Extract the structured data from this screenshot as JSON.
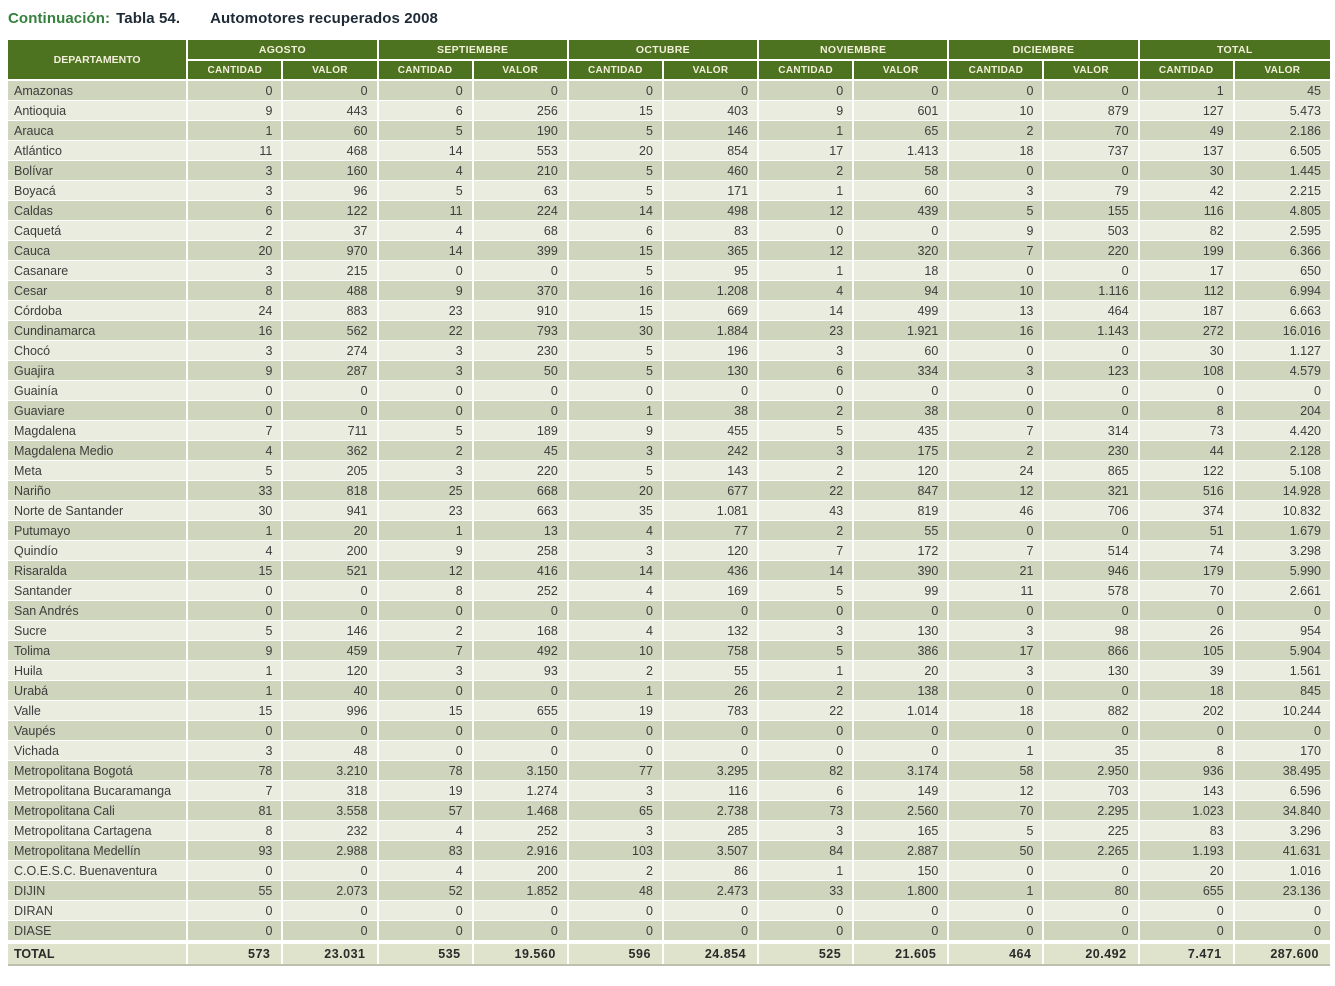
{
  "title": {
    "continuation": "Continuación:",
    "table_number": "Tabla 54.",
    "table_name": "Automotores recuperados 2008"
  },
  "colors": {
    "header_bg": "#4d7220",
    "header_text": "#f3efda",
    "row_dark": "#cfd4bc",
    "row_light": "#e9ecdf",
    "total_row_bg": "#dfe3cc",
    "title_green": "#35813d",
    "title_dark": "#1e2a36"
  },
  "table": {
    "department_header": "DEPARTAMENTO",
    "month_groups": [
      "AGOSTO",
      "SEPTIEMBRE",
      "OCTUBRE",
      "NOVIEMBRE",
      "DICIEMBRE",
      "TOTAL"
    ],
    "sub_headers": [
      "CANTIDAD",
      "VALOR"
    ],
    "rows": [
      {
        "name": "Amazonas",
        "values": [
          "0",
          "0",
          "0",
          "0",
          "0",
          "0",
          "0",
          "0",
          "0",
          "0",
          "1",
          "45"
        ]
      },
      {
        "name": "Antioquia",
        "values": [
          "9",
          "443",
          "6",
          "256",
          "15",
          "403",
          "9",
          "601",
          "10",
          "879",
          "127",
          "5.473"
        ]
      },
      {
        "name": "Arauca",
        "values": [
          "1",
          "60",
          "5",
          "190",
          "5",
          "146",
          "1",
          "65",
          "2",
          "70",
          "49",
          "2.186"
        ]
      },
      {
        "name": "Atlántico",
        "values": [
          "11",
          "468",
          "14",
          "553",
          "20",
          "854",
          "17",
          "1.413",
          "18",
          "737",
          "137",
          "6.505"
        ]
      },
      {
        "name": "Bolívar",
        "values": [
          "3",
          "160",
          "4",
          "210",
          "5",
          "460",
          "2",
          "58",
          "0",
          "0",
          "30",
          "1.445"
        ]
      },
      {
        "name": "Boyacá",
        "values": [
          "3",
          "96",
          "5",
          "63",
          "5",
          "171",
          "1",
          "60",
          "3",
          "79",
          "42",
          "2.215"
        ]
      },
      {
        "name": "Caldas",
        "values": [
          "6",
          "122",
          "11",
          "224",
          "14",
          "498",
          "12",
          "439",
          "5",
          "155",
          "116",
          "4.805"
        ]
      },
      {
        "name": "Caquetá",
        "values": [
          "2",
          "37",
          "4",
          "68",
          "6",
          "83",
          "0",
          "0",
          "9",
          "503",
          "82",
          "2.595"
        ]
      },
      {
        "name": "Cauca",
        "values": [
          "20",
          "970",
          "14",
          "399",
          "15",
          "365",
          "12",
          "320",
          "7",
          "220",
          "199",
          "6.366"
        ]
      },
      {
        "name": "Casanare",
        "values": [
          "3",
          "215",
          "0",
          "0",
          "5",
          "95",
          "1",
          "18",
          "0",
          "0",
          "17",
          "650"
        ]
      },
      {
        "name": "Cesar",
        "values": [
          "8",
          "488",
          "9",
          "370",
          "16",
          "1.208",
          "4",
          "94",
          "10",
          "1.116",
          "112",
          "6.994"
        ]
      },
      {
        "name": "Córdoba",
        "values": [
          "24",
          "883",
          "23",
          "910",
          "15",
          "669",
          "14",
          "499",
          "13",
          "464",
          "187",
          "6.663"
        ]
      },
      {
        "name": "Cundinamarca",
        "values": [
          "16",
          "562",
          "22",
          "793",
          "30",
          "1.884",
          "23",
          "1.921",
          "16",
          "1.143",
          "272",
          "16.016"
        ]
      },
      {
        "name": "Chocó",
        "values": [
          "3",
          "274",
          "3",
          "230",
          "5",
          "196",
          "3",
          "60",
          "0",
          "0",
          "30",
          "1.127"
        ]
      },
      {
        "name": "Guajira",
        "values": [
          "9",
          "287",
          "3",
          "50",
          "5",
          "130",
          "6",
          "334",
          "3",
          "123",
          "108",
          "4.579"
        ]
      },
      {
        "name": "Guainía",
        "values": [
          "0",
          "0",
          "0",
          "0",
          "0",
          "0",
          "0",
          "0",
          "0",
          "0",
          "0",
          "0"
        ]
      },
      {
        "name": "Guaviare",
        "values": [
          "0",
          "0",
          "0",
          "0",
          "1",
          "38",
          "2",
          "38",
          "0",
          "0",
          "8",
          "204"
        ]
      },
      {
        "name": "Magdalena",
        "values": [
          "7",
          "711",
          "5",
          "189",
          "9",
          "455",
          "5",
          "435",
          "7",
          "314",
          "73",
          "4.420"
        ]
      },
      {
        "name": "Magdalena Medio",
        "values": [
          "4",
          "362",
          "2",
          "45",
          "3",
          "242",
          "3",
          "175",
          "2",
          "230",
          "44",
          "2.128"
        ]
      },
      {
        "name": "Meta",
        "values": [
          "5",
          "205",
          "3",
          "220",
          "5",
          "143",
          "2",
          "120",
          "24",
          "865",
          "122",
          "5.108"
        ]
      },
      {
        "name": "Nariño",
        "values": [
          "33",
          "818",
          "25",
          "668",
          "20",
          "677",
          "22",
          "847",
          "12",
          "321",
          "516",
          "14.928"
        ]
      },
      {
        "name": "Norte de Santander",
        "values": [
          "30",
          "941",
          "23",
          "663",
          "35",
          "1.081",
          "43",
          "819",
          "46",
          "706",
          "374",
          "10.832"
        ]
      },
      {
        "name": "Putumayo",
        "values": [
          "1",
          "20",
          "1",
          "13",
          "4",
          "77",
          "2",
          "55",
          "0",
          "0",
          "51",
          "1.679"
        ]
      },
      {
        "name": "Quindío",
        "values": [
          "4",
          "200",
          "9",
          "258",
          "3",
          "120",
          "7",
          "172",
          "7",
          "514",
          "74",
          "3.298"
        ]
      },
      {
        "name": "Risaralda",
        "values": [
          "15",
          "521",
          "12",
          "416",
          "14",
          "436",
          "14",
          "390",
          "21",
          "946",
          "179",
          "5.990"
        ]
      },
      {
        "name": "Santander",
        "values": [
          "0",
          "0",
          "8",
          "252",
          "4",
          "169",
          "5",
          "99",
          "11",
          "578",
          "70",
          "2.661"
        ]
      },
      {
        "name": "San Andrés",
        "values": [
          "0",
          "0",
          "0",
          "0",
          "0",
          "0",
          "0",
          "0",
          "0",
          "0",
          "0",
          "0"
        ]
      },
      {
        "name": "Sucre",
        "values": [
          "5",
          "146",
          "2",
          "168",
          "4",
          "132",
          "3",
          "130",
          "3",
          "98",
          "26",
          "954"
        ]
      },
      {
        "name": "Tolima",
        "values": [
          "9",
          "459",
          "7",
          "492",
          "10",
          "758",
          "5",
          "386",
          "17",
          "866",
          "105",
          "5.904"
        ]
      },
      {
        "name": "Huila",
        "values": [
          "1",
          "120",
          "3",
          "93",
          "2",
          "55",
          "1",
          "20",
          "3",
          "130",
          "39",
          "1.561"
        ]
      },
      {
        "name": "Urabá",
        "values": [
          "1",
          "40",
          "0",
          "0",
          "1",
          "26",
          "2",
          "138",
          "0",
          "0",
          "18",
          "845"
        ]
      },
      {
        "name": "Valle",
        "values": [
          "15",
          "996",
          "15",
          "655",
          "19",
          "783",
          "22",
          "1.014",
          "18",
          "882",
          "202",
          "10.244"
        ]
      },
      {
        "name": "Vaupés",
        "values": [
          "0",
          "0",
          "0",
          "0",
          "0",
          "0",
          "0",
          "0",
          "0",
          "0",
          "0",
          "0"
        ]
      },
      {
        "name": "Vichada",
        "values": [
          "3",
          "48",
          "0",
          "0",
          "0",
          "0",
          "0",
          "0",
          "1",
          "35",
          "8",
          "170"
        ]
      },
      {
        "name": "Metropolitana Bogotá",
        "values": [
          "78",
          "3.210",
          "78",
          "3.150",
          "77",
          "3.295",
          "82",
          "3.174",
          "58",
          "2.950",
          "936",
          "38.495"
        ]
      },
      {
        "name": "Metropolitana Bucaramanga",
        "values": [
          "7",
          "318",
          "19",
          "1.274",
          "3",
          "116",
          "6",
          "149",
          "12",
          "703",
          "143",
          "6.596"
        ]
      },
      {
        "name": "Metropolitana Cali",
        "values": [
          "81",
          "3.558",
          "57",
          "1.468",
          "65",
          "2.738",
          "73",
          "2.560",
          "70",
          "2.295",
          "1.023",
          "34.840"
        ]
      },
      {
        "name": "Metropolitana Cartagena",
        "values": [
          "8",
          "232",
          "4",
          "252",
          "3",
          "285",
          "3",
          "165",
          "5",
          "225",
          "83",
          "3.296"
        ]
      },
      {
        "name": "Metropolitana Medellín",
        "values": [
          "93",
          "2.988",
          "83",
          "2.916",
          "103",
          "3.507",
          "84",
          "2.887",
          "50",
          "2.265",
          "1.193",
          "41.631"
        ]
      },
      {
        "name": "C.O.E.S.C. Buenaventura",
        "values": [
          "0",
          "0",
          "4",
          "200",
          "2",
          "86",
          "1",
          "150",
          "0",
          "0",
          "20",
          "1.016"
        ]
      },
      {
        "name": "DIJIN",
        "values": [
          "55",
          "2.073",
          "52",
          "1.852",
          "48",
          "2.473",
          "33",
          "1.800",
          "1",
          "80",
          "655",
          "23.136"
        ]
      },
      {
        "name": "DIRAN",
        "values": [
          "0",
          "0",
          "0",
          "0",
          "0",
          "0",
          "0",
          "0",
          "0",
          "0",
          "0",
          "0"
        ]
      },
      {
        "name": "DIASE",
        "values": [
          "0",
          "0",
          "0",
          "0",
          "0",
          "0",
          "0",
          "0",
          "0",
          "0",
          "0",
          "0"
        ]
      }
    ],
    "total_row": {
      "name": "TOTAL",
      "values": [
        "573",
        "23.031",
        "535",
        "19.560",
        "596",
        "24.854",
        "525",
        "21.605",
        "464",
        "20.492",
        "7.471",
        "287.600"
      ]
    }
  }
}
